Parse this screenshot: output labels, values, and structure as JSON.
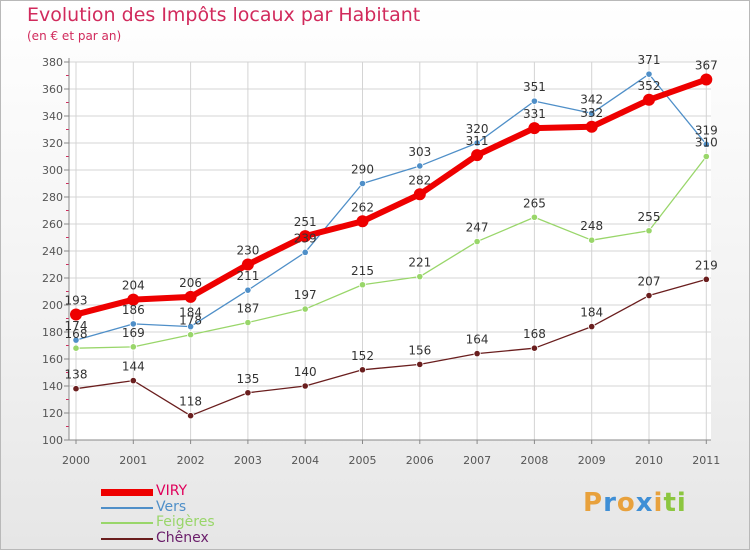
{
  "header": {
    "title": "Evolution des Impôts locaux par Habitant",
    "subtitle": "(en € et par an)"
  },
  "logo": {
    "letters": [
      "P",
      "r",
      "o",
      "x",
      "i",
      "t",
      "i"
    ],
    "colors": [
      "#e8a13c",
      "#3f8fd6",
      "#e8a13c",
      "#3f8fd6",
      "#e8a13c",
      "#8cc63f",
      "#8cc63f"
    ]
  },
  "colors": {
    "title": "#d12a5c",
    "axis": "#555555",
    "grid": "#d4d4d4"
  },
  "chart_data": {
    "type": "line",
    "title": "Evolution des Impôts locaux par Habitant",
    "subtitle": "(en € et par an)",
    "xlabel": "",
    "ylabel": "",
    "x": [
      "2000",
      "2001",
      "2002",
      "2003",
      "2004",
      "2005",
      "2006",
      "2007",
      "2008",
      "2009",
      "2010",
      "2011"
    ],
    "ylim": [
      100,
      380
    ],
    "yticks": [
      100,
      120,
      140,
      160,
      180,
      200,
      220,
      240,
      260,
      280,
      300,
      320,
      340,
      360,
      380
    ],
    "grid": true,
    "legend_position": "bottom-left",
    "series": [
      {
        "name": "VIRY",
        "color": "#ee0000",
        "values": [
          193,
          204,
          206,
          230,
          251,
          262,
          282,
          311,
          331,
          332,
          352,
          367
        ]
      },
      {
        "name": "Vers",
        "color": "#4f8fc8",
        "values": [
          174,
          186,
          184,
          211,
          239,
          290,
          303,
          320,
          351,
          342,
          371,
          319
        ]
      },
      {
        "name": "Feigères",
        "color": "#99d66a",
        "values": [
          168,
          169,
          178,
          187,
          197,
          215,
          221,
          247,
          265,
          248,
          255,
          310
        ]
      },
      {
        "name": "Chênex",
        "color": "#6a1e1e",
        "values": [
          138,
          144,
          118,
          135,
          140,
          152,
          156,
          164,
          168,
          184,
          207,
          219
        ]
      }
    ]
  }
}
